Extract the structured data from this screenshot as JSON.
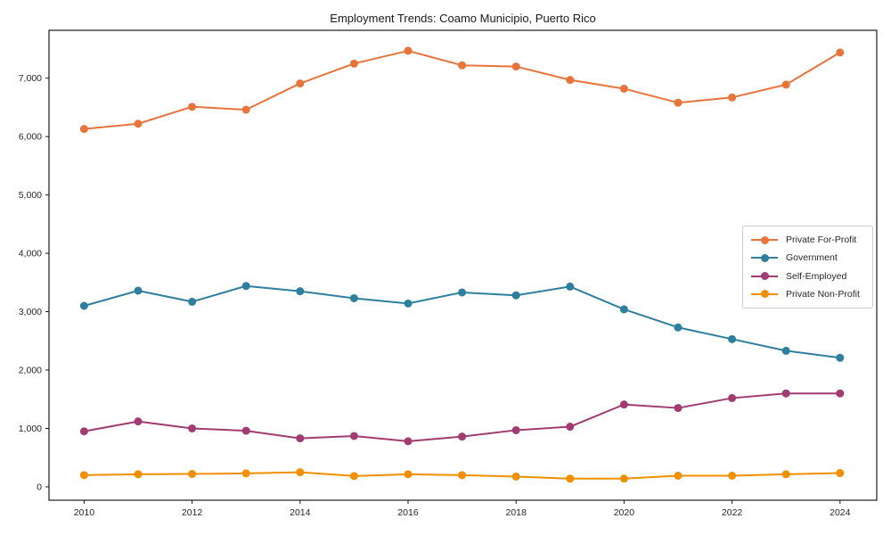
{
  "chart_data": {
    "type": "line",
    "title": "Employment Trends: Coamo Municipio, Puerto Rico",
    "xlabel": "",
    "ylabel": "",
    "grid": false,
    "legend_position": "center-right",
    "x": [
      2010,
      2011,
      2012,
      2013,
      2014,
      2015,
      2016,
      2017,
      2018,
      2019,
      2020,
      2021,
      2022,
      2023,
      2024
    ],
    "x_ticks": [
      2010,
      2012,
      2014,
      2016,
      2018,
      2020,
      2022,
      2024
    ],
    "x_tick_labels": [
      "2010",
      "2012",
      "2014",
      "2016",
      "2018",
      "2020",
      "2022",
      "2024"
    ],
    "y_ticks": [
      0,
      1000,
      2000,
      3000,
      4000,
      5000,
      6000,
      7000
    ],
    "y_tick_labels": [
      "0",
      "1,000",
      "2,000",
      "3,000",
      "4,000",
      "5,000",
      "6,000",
      "7,000"
    ],
    "xlim": [
      2009.35,
      2024.68
    ],
    "ylim": [
      -230,
      7820
    ],
    "series": [
      {
        "name": "Private For-Profit",
        "color": "#E8743B",
        "values": [
          6130,
          6220,
          6510,
          6460,
          6910,
          7250,
          7470,
          7220,
          7200,
          6970,
          6820,
          6580,
          6670,
          6890,
          7440
        ]
      },
      {
        "name": "Government",
        "color": "#2E7F9E",
        "values": [
          3100,
          3360,
          3170,
          3440,
          3350,
          3230,
          3140,
          3330,
          3280,
          3430,
          3040,
          2730,
          2530,
          2330,
          2210
        ]
      },
      {
        "name": "Self-Employed",
        "color": "#A23B72",
        "values": [
          950,
          1120,
          1000,
          960,
          830,
          870,
          780,
          860,
          970,
          1030,
          1410,
          1350,
          1520,
          1600,
          1600
        ]
      },
      {
        "name": "Private Non-Profit",
        "color": "#F18F01",
        "values": [
          200,
          215,
          220,
          230,
          250,
          185,
          215,
          200,
          175,
          140,
          140,
          190,
          190,
          215,
          235
        ]
      }
    ],
    "axis_color": "#1a1a1a",
    "tick_label_color": "#262626"
  }
}
